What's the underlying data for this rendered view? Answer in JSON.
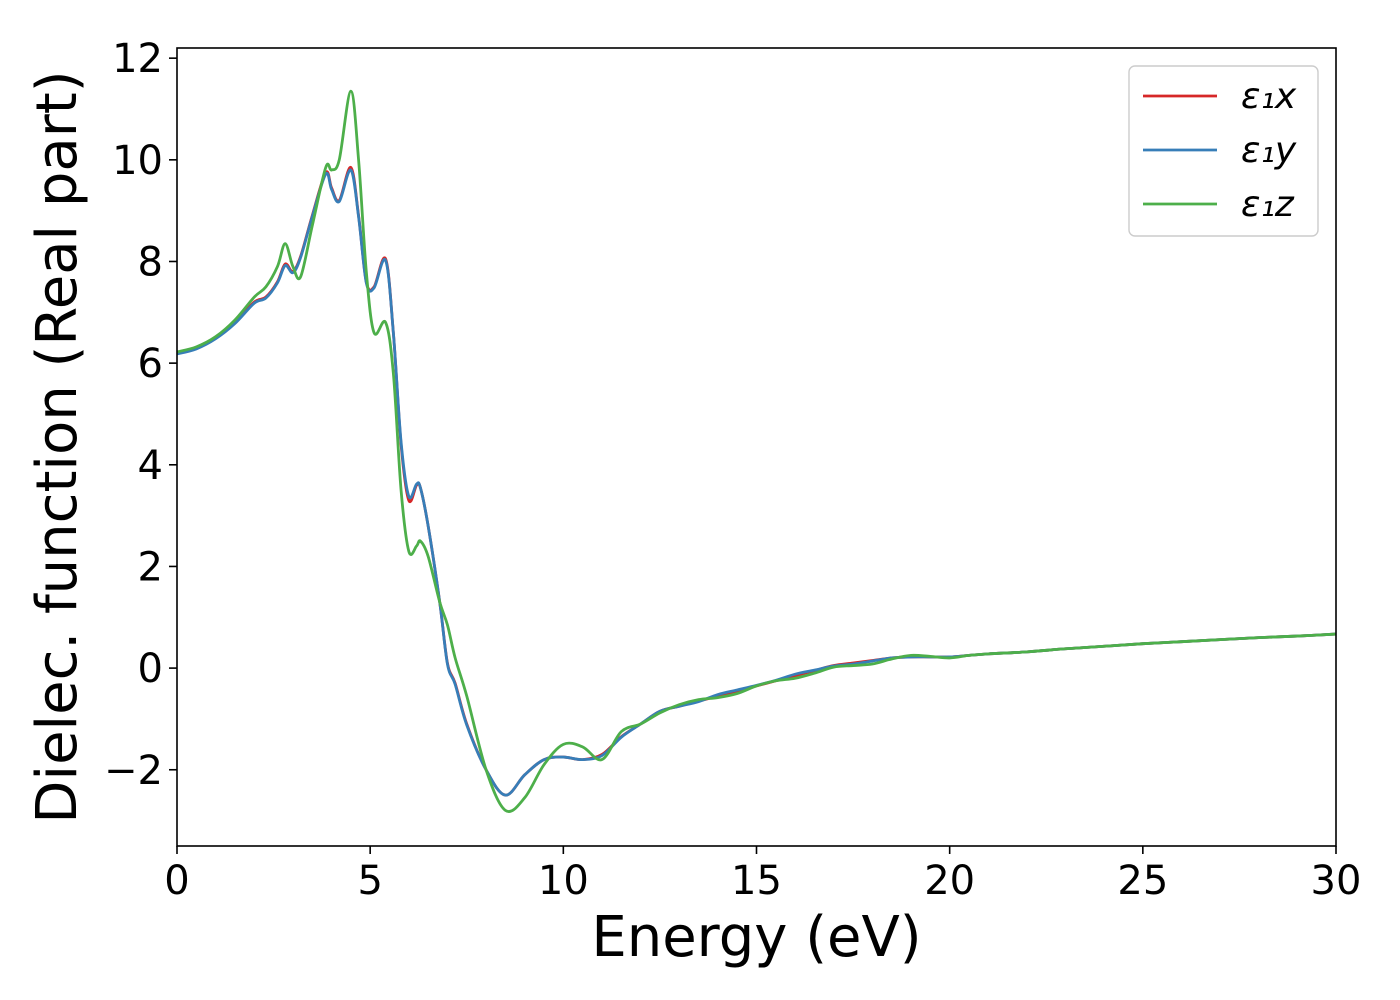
{
  "chart_data": {
    "type": "line",
    "title": "",
    "xlabel": "Energy (eV)",
    "ylabel": "Dielec. function (Real part)",
    "xlim": [
      0,
      30
    ],
    "ylim": [
      -3.5,
      12.2
    ],
    "xticks": [
      0,
      5,
      10,
      15,
      20,
      25,
      30
    ],
    "xtick_labels": [
      "0",
      "5",
      "10",
      "15",
      "20",
      "25",
      "30"
    ],
    "yticks": [
      -2,
      0,
      2,
      4,
      6,
      8,
      10,
      12
    ],
    "ytick_labels": [
      "−2",
      "0",
      "2",
      "4",
      "6",
      "8",
      "10",
      "12"
    ],
    "grid": false,
    "legend_position": "top-right",
    "series": [
      {
        "name": "ε₁x",
        "color": "#d62728",
        "x": [
          0,
          0.5,
          1.0,
          1.5,
          2.0,
          2.3,
          2.6,
          2.8,
          3.0,
          3.2,
          3.5,
          3.85,
          4.0,
          4.2,
          4.5,
          4.7,
          4.9,
          5.1,
          5.4,
          5.6,
          5.8,
          6.0,
          6.2,
          6.3,
          6.5,
          6.8,
          7.0,
          7.2,
          7.5,
          8.0,
          8.5,
          9.0,
          9.5,
          10.0,
          10.5,
          11.0,
          11.5,
          12.0,
          12.5,
          13.0,
          13.5,
          14.0,
          14.5,
          15.0,
          15.5,
          16.0,
          16.5,
          17.0,
          17.5,
          18.0,
          18.5,
          19.0,
          19.5,
          20.0,
          20.5,
          21.0,
          22.0,
          23.0,
          24.0,
          25.0,
          26.0,
          27.0,
          28.0,
          29.0,
          30.0
        ],
        "y": [
          6.2,
          6.3,
          6.5,
          6.8,
          7.2,
          7.3,
          7.6,
          7.95,
          7.8,
          8.1,
          8.9,
          9.75,
          9.45,
          9.2,
          9.85,
          8.9,
          7.6,
          7.5,
          8.05,
          6.6,
          4.4,
          3.3,
          3.6,
          3.55,
          2.8,
          1.3,
          0.1,
          -0.3,
          -1.1,
          -2.0,
          -2.5,
          -2.1,
          -1.8,
          -1.75,
          -1.8,
          -1.7,
          -1.35,
          -1.1,
          -0.85,
          -0.75,
          -0.65,
          -0.55,
          -0.45,
          -0.35,
          -0.25,
          -0.15,
          -0.05,
          0.05,
          0.1,
          0.15,
          0.2,
          0.22,
          0.22,
          0.22,
          0.25,
          0.28,
          0.32,
          0.38,
          0.43,
          0.48,
          0.52,
          0.56,
          0.6,
          0.63,
          0.67
        ]
      },
      {
        "name": "ε₁y",
        "color": "#377eb8",
        "x": [
          0,
          0.5,
          1.0,
          1.5,
          2.0,
          2.3,
          2.6,
          2.8,
          3.0,
          3.2,
          3.5,
          3.85,
          4.0,
          4.2,
          4.5,
          4.7,
          4.9,
          5.1,
          5.4,
          5.6,
          5.8,
          6.0,
          6.2,
          6.3,
          6.5,
          6.8,
          7.0,
          7.2,
          7.5,
          8.0,
          8.5,
          9.0,
          9.5,
          10.0,
          10.5,
          11.0,
          11.5,
          12.0,
          12.5,
          13.0,
          13.5,
          14.0,
          14.5,
          15.0,
          15.5,
          16.0,
          16.5,
          17.0,
          17.5,
          18.0,
          18.5,
          19.0,
          19.5,
          20.0,
          20.5,
          21.0,
          22.0,
          23.0,
          24.0,
          25.0,
          26.0,
          27.0,
          28.0,
          29.0,
          30.0
        ],
        "y": [
          6.18,
          6.28,
          6.48,
          6.78,
          7.18,
          7.28,
          7.58,
          7.92,
          7.78,
          8.08,
          8.88,
          9.72,
          9.42,
          9.18,
          9.8,
          8.88,
          7.58,
          7.48,
          8.02,
          6.6,
          4.45,
          3.38,
          3.62,
          3.55,
          2.8,
          1.3,
          0.08,
          -0.32,
          -1.12,
          -2.0,
          -2.5,
          -2.1,
          -1.8,
          -1.75,
          -1.8,
          -1.72,
          -1.36,
          -1.1,
          -0.85,
          -0.75,
          -0.66,
          -0.52,
          -0.43,
          -0.34,
          -0.24,
          -0.12,
          -0.04,
          0.04,
          0.08,
          0.14,
          0.2,
          0.22,
          0.22,
          0.22,
          0.25,
          0.28,
          0.32,
          0.38,
          0.43,
          0.48,
          0.52,
          0.56,
          0.6,
          0.63,
          0.67
        ]
      },
      {
        "name": "ε₁z",
        "color": "#4daf4a",
        "x": [
          0,
          0.5,
          1.0,
          1.5,
          2.0,
          2.3,
          2.6,
          2.8,
          3.0,
          3.2,
          3.5,
          3.85,
          4.0,
          4.2,
          4.5,
          4.7,
          4.9,
          5.1,
          5.4,
          5.6,
          5.8,
          6.0,
          6.2,
          6.3,
          6.5,
          6.8,
          7.0,
          7.2,
          7.5,
          8.0,
          8.5,
          9.0,
          9.5,
          10.0,
          10.5,
          11.0,
          11.5,
          12.0,
          12.5,
          13.0,
          13.5,
          14.0,
          14.5,
          15.0,
          15.5,
          16.0,
          16.5,
          17.0,
          17.5,
          18.0,
          18.5,
          19.0,
          19.5,
          20.0,
          20.5,
          21.0,
          22.0,
          23.0,
          24.0,
          25.0,
          26.0,
          27.0,
          28.0,
          29.0,
          30.0
        ],
        "y": [
          6.22,
          6.32,
          6.52,
          6.85,
          7.3,
          7.5,
          7.9,
          8.35,
          7.9,
          7.7,
          8.7,
          9.85,
          9.8,
          10.0,
          11.35,
          10.0,
          7.8,
          6.6,
          6.8,
          5.8,
          3.5,
          2.3,
          2.4,
          2.5,
          2.2,
          1.3,
          0.85,
          0.2,
          -0.55,
          -2.0,
          -2.8,
          -2.55,
          -1.9,
          -1.5,
          -1.55,
          -1.8,
          -1.25,
          -1.1,
          -0.88,
          -0.72,
          -0.62,
          -0.58,
          -0.5,
          -0.35,
          -0.25,
          -0.2,
          -0.1,
          0.02,
          0.05,
          0.08,
          0.18,
          0.25,
          0.23,
          0.2,
          0.25,
          0.28,
          0.32,
          0.38,
          0.43,
          0.48,
          0.52,
          0.56,
          0.6,
          0.63,
          0.67
        ]
      }
    ]
  }
}
